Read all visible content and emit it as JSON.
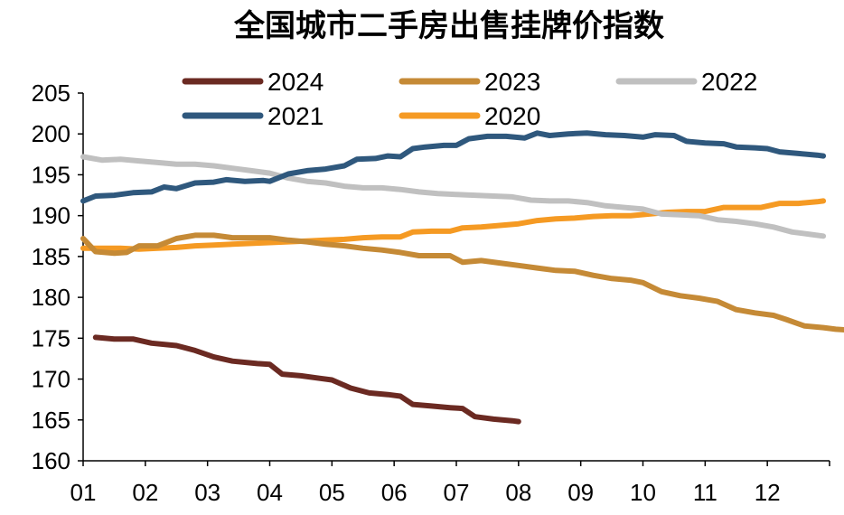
{
  "chart_data": {
    "type": "line",
    "title": "全国城市二手房出售挂牌价指数",
    "xlabel": "",
    "ylabel": "",
    "ylim": [
      160,
      205
    ],
    "yticks": [
      160,
      165,
      170,
      175,
      180,
      185,
      190,
      195,
      200,
      205
    ],
    "x_ticks": [
      "01",
      "02",
      "03",
      "04",
      "05",
      "06",
      "07",
      "08",
      "09",
      "10",
      "11",
      "12"
    ],
    "x_range": [
      1,
      13
    ],
    "grid": false,
    "legend_position": "top",
    "series": [
      {
        "name": "2024",
        "color": "#6B2A22",
        "points": [
          [
            1.2,
            175.1
          ],
          [
            1.5,
            174.9
          ],
          [
            1.8,
            174.9
          ],
          [
            2.1,
            174.4
          ],
          [
            2.5,
            174.1
          ],
          [
            2.8,
            173.5
          ],
          [
            3.1,
            172.7
          ],
          [
            3.4,
            172.2
          ],
          [
            3.8,
            171.9
          ],
          [
            4.0,
            171.8
          ],
          [
            4.2,
            170.6
          ],
          [
            4.5,
            170.4
          ],
          [
            4.8,
            170.1
          ],
          [
            5.0,
            169.9
          ],
          [
            5.3,
            168.9
          ],
          [
            5.6,
            168.3
          ],
          [
            5.9,
            168.1
          ],
          [
            6.1,
            167.9
          ],
          [
            6.3,
            166.9
          ],
          [
            6.6,
            166.7
          ],
          [
            6.9,
            166.5
          ],
          [
            7.1,
            166.4
          ],
          [
            7.3,
            165.4
          ],
          [
            7.6,
            165.1
          ],
          [
            7.9,
            164.9
          ],
          [
            8.0,
            164.8
          ]
        ]
      },
      {
        "name": "2023",
        "color": "#C58A36",
        "points": [
          [
            1.0,
            187.2
          ],
          [
            1.2,
            185.6
          ],
          [
            1.5,
            185.4
          ],
          [
            1.7,
            185.5
          ],
          [
            1.9,
            186.3
          ],
          [
            2.2,
            186.3
          ],
          [
            2.5,
            187.2
          ],
          [
            2.8,
            187.6
          ],
          [
            3.1,
            187.6
          ],
          [
            3.4,
            187.3
          ],
          [
            3.7,
            187.3
          ],
          [
            4.0,
            187.3
          ],
          [
            4.3,
            187.0
          ],
          [
            4.6,
            186.8
          ],
          [
            4.9,
            186.5
          ],
          [
            5.2,
            186.3
          ],
          [
            5.5,
            186.0
          ],
          [
            5.8,
            185.8
          ],
          [
            6.1,
            185.5
          ],
          [
            6.4,
            185.1
          ],
          [
            6.6,
            185.1
          ],
          [
            6.9,
            185.1
          ],
          [
            7.1,
            184.3
          ],
          [
            7.4,
            184.5
          ],
          [
            7.7,
            184.2
          ],
          [
            8.0,
            183.9
          ],
          [
            8.3,
            183.6
          ],
          [
            8.6,
            183.3
          ],
          [
            8.9,
            183.2
          ],
          [
            9.2,
            182.7
          ],
          [
            9.5,
            182.3
          ],
          [
            9.8,
            182.1
          ],
          [
            10.0,
            181.8
          ],
          [
            10.3,
            180.7
          ],
          [
            10.6,
            180.2
          ],
          [
            10.9,
            179.9
          ],
          [
            11.2,
            179.5
          ],
          [
            11.5,
            178.5
          ],
          [
            11.8,
            178.1
          ],
          [
            12.1,
            177.8
          ],
          [
            12.3,
            177.3
          ],
          [
            12.6,
            176.5
          ],
          [
            12.9,
            176.3
          ],
          [
            13.1,
            176.1
          ],
          [
            13.3,
            176.0
          ]
        ]
      },
      {
        "name": "2022",
        "color": "#C0C0C0",
        "points": [
          [
            1.0,
            197.2
          ],
          [
            1.3,
            196.8
          ],
          [
            1.6,
            196.9
          ],
          [
            1.9,
            196.7
          ],
          [
            2.2,
            196.5
          ],
          [
            2.5,
            196.3
          ],
          [
            2.8,
            196.3
          ],
          [
            3.1,
            196.1
          ],
          [
            3.4,
            195.8
          ],
          [
            3.7,
            195.5
          ],
          [
            4.0,
            195.2
          ],
          [
            4.3,
            194.6
          ],
          [
            4.6,
            194.2
          ],
          [
            4.9,
            194.0
          ],
          [
            5.2,
            193.6
          ],
          [
            5.5,
            193.4
          ],
          [
            5.8,
            193.4
          ],
          [
            6.1,
            193.2
          ],
          [
            6.4,
            192.9
          ],
          [
            6.7,
            192.7
          ],
          [
            7.0,
            192.6
          ],
          [
            7.3,
            192.5
          ],
          [
            7.6,
            192.4
          ],
          [
            7.9,
            192.3
          ],
          [
            8.2,
            191.9
          ],
          [
            8.5,
            191.8
          ],
          [
            8.8,
            191.8
          ],
          [
            9.1,
            191.6
          ],
          [
            9.4,
            191.2
          ],
          [
            9.7,
            191.0
          ],
          [
            10.0,
            190.8
          ],
          [
            10.3,
            190.2
          ],
          [
            10.6,
            190.1
          ],
          [
            10.9,
            190.0
          ],
          [
            11.2,
            189.5
          ],
          [
            11.5,
            189.3
          ],
          [
            11.8,
            189.0
          ],
          [
            12.1,
            188.6
          ],
          [
            12.4,
            188.0
          ],
          [
            12.7,
            187.7
          ],
          [
            12.9,
            187.5
          ]
        ]
      },
      {
        "name": "2021",
        "color": "#2F587D",
        "points": [
          [
            1.0,
            191.8
          ],
          [
            1.2,
            192.4
          ],
          [
            1.5,
            192.5
          ],
          [
            1.8,
            192.8
          ],
          [
            2.1,
            192.9
          ],
          [
            2.3,
            193.5
          ],
          [
            2.5,
            193.3
          ],
          [
            2.8,
            194.0
          ],
          [
            3.1,
            194.1
          ],
          [
            3.3,
            194.4
          ],
          [
            3.6,
            194.2
          ],
          [
            3.9,
            194.3
          ],
          [
            4.0,
            194.2
          ],
          [
            4.3,
            195.1
          ],
          [
            4.6,
            195.5
          ],
          [
            4.9,
            195.7
          ],
          [
            5.2,
            196.1
          ],
          [
            5.4,
            196.9
          ],
          [
            5.7,
            197.0
          ],
          [
            5.9,
            197.3
          ],
          [
            6.1,
            197.2
          ],
          [
            6.3,
            198.2
          ],
          [
            6.5,
            198.4
          ],
          [
            6.8,
            198.6
          ],
          [
            7.0,
            198.6
          ],
          [
            7.2,
            199.4
          ],
          [
            7.5,
            199.7
          ],
          [
            7.8,
            199.7
          ],
          [
            8.1,
            199.5
          ],
          [
            8.3,
            200.1
          ],
          [
            8.5,
            199.8
          ],
          [
            8.8,
            200.0
          ],
          [
            9.1,
            200.1
          ],
          [
            9.4,
            199.9
          ],
          [
            9.7,
            199.8
          ],
          [
            10.0,
            199.6
          ],
          [
            10.2,
            199.9
          ],
          [
            10.5,
            199.8
          ],
          [
            10.7,
            199.1
          ],
          [
            11.0,
            198.9
          ],
          [
            11.3,
            198.8
          ],
          [
            11.5,
            198.4
          ],
          [
            11.8,
            198.3
          ],
          [
            12.0,
            198.2
          ],
          [
            12.2,
            197.8
          ],
          [
            12.5,
            197.6
          ],
          [
            12.8,
            197.4
          ],
          [
            12.9,
            197.3
          ]
        ]
      },
      {
        "name": "2020",
        "color": "#F59A23",
        "points": [
          [
            1.0,
            186.0
          ],
          [
            1.3,
            186.0
          ],
          [
            1.6,
            186.0
          ],
          [
            1.9,
            185.9
          ],
          [
            2.2,
            186.0
          ],
          [
            2.5,
            186.1
          ],
          [
            2.8,
            186.3
          ],
          [
            3.1,
            186.4
          ],
          [
            3.4,
            186.5
          ],
          [
            3.7,
            186.6
          ],
          [
            4.0,
            186.7
          ],
          [
            4.3,
            186.8
          ],
          [
            4.6,
            186.9
          ],
          [
            4.9,
            187.0
          ],
          [
            5.2,
            187.1
          ],
          [
            5.5,
            187.3
          ],
          [
            5.8,
            187.4
          ],
          [
            6.1,
            187.4
          ],
          [
            6.3,
            188.0
          ],
          [
            6.6,
            188.1
          ],
          [
            6.9,
            188.1
          ],
          [
            7.1,
            188.5
          ],
          [
            7.4,
            188.6
          ],
          [
            7.7,
            188.8
          ],
          [
            8.0,
            189.0
          ],
          [
            8.3,
            189.4
          ],
          [
            8.6,
            189.6
          ],
          [
            8.9,
            189.7
          ],
          [
            9.2,
            189.9
          ],
          [
            9.5,
            190.0
          ],
          [
            9.8,
            190.0
          ],
          [
            10.1,
            190.2
          ],
          [
            10.4,
            190.4
          ],
          [
            10.7,
            190.5
          ],
          [
            11.0,
            190.5
          ],
          [
            11.3,
            191.0
          ],
          [
            11.6,
            191.0
          ],
          [
            11.9,
            191.0
          ],
          [
            12.2,
            191.5
          ],
          [
            12.5,
            191.5
          ],
          [
            12.8,
            191.7
          ],
          [
            12.9,
            191.8
          ]
        ]
      }
    ]
  }
}
